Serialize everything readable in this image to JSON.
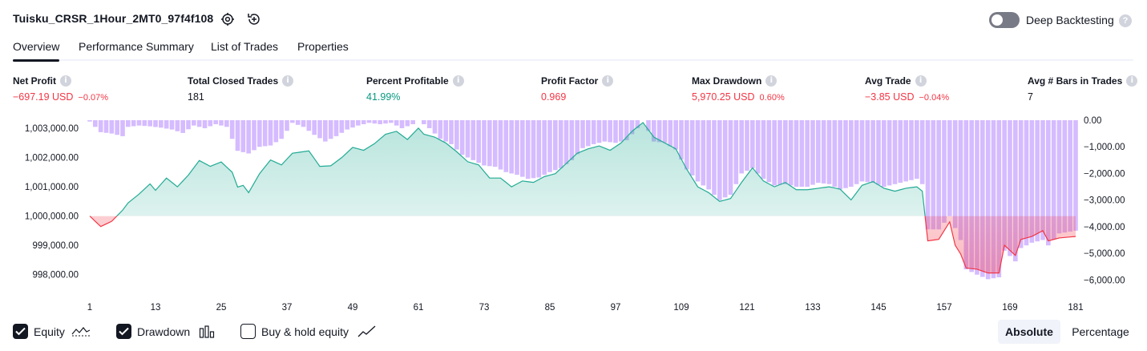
{
  "header": {
    "strategy_name": "Tuisku_CRSR_1Hour_2MT0_97f4f108",
    "deep_backtesting_label": "Deep Backtesting",
    "help_glyph": "?"
  },
  "tabs": [
    {
      "label": "Overview",
      "active": true
    },
    {
      "label": "Performance Summary",
      "active": false
    },
    {
      "label": "List of Trades",
      "active": false
    },
    {
      "label": "Properties",
      "active": false
    }
  ],
  "metrics": [
    {
      "label": "Net Profit",
      "value": "−697.19 USD",
      "sub": "−0.07%",
      "tone": "neg"
    },
    {
      "label": "Total Closed Trades",
      "value": "181",
      "sub": "",
      "tone": "neutral"
    },
    {
      "label": "Percent Profitable",
      "value": "41.99%",
      "sub": "",
      "tone": "pos"
    },
    {
      "label": "Profit Factor",
      "value": "0.969",
      "sub": "",
      "tone": "neg"
    },
    {
      "label": "Max Drawdown",
      "value": "5,970.25 USD",
      "sub": "0.60%",
      "tone": "neg"
    },
    {
      "label": "Avg Trade",
      "value": "−3.85 USD",
      "sub": "−0.04%",
      "tone": "neg"
    },
    {
      "label": "Avg # Bars in Trades",
      "value": "7",
      "sub": "",
      "tone": "neutral"
    }
  ],
  "info_glyph": "i",
  "chart_data": {
    "type": "area",
    "baseline": 1000000,
    "y_left": {
      "min": 997300,
      "max": 1003280,
      "ticks": [
        998000,
        999000,
        1000000,
        1001000,
        1002000,
        1003000
      ],
      "tick_labels": [
        "998,000.00",
        "999,000.00",
        "1,000,000.00",
        "1,001,000.00",
        "1,002,000.00",
        "1,003,000.00"
      ]
    },
    "y_right": {
      "min": -6560,
      "max": 0,
      "ticks": [
        0,
        -1000,
        -2000,
        -3000,
        -4000,
        -5000,
        -6000
      ],
      "tick_labels": [
        "0.00",
        "−1,000.00",
        "−2,000.00",
        "−3,000.00",
        "−4,000.00",
        "−5,000.00",
        "−6,000.00"
      ]
    },
    "x_ticks": [
      1,
      13,
      25,
      37,
      49,
      61,
      73,
      85,
      97,
      109,
      121,
      133,
      145,
      157,
      169,
      181
    ],
    "trades": 181,
    "equity_anchors": [
      [
        1,
        1000000
      ],
      [
        3,
        999640
      ],
      [
        5,
        999820
      ],
      [
        7,
        1000200
      ],
      [
        8,
        1000450
      ],
      [
        10,
        1000750
      ],
      [
        12,
        1001100
      ],
      [
        13,
        1000880
      ],
      [
        15,
        1001300
      ],
      [
        17,
        1001000
      ],
      [
        19,
        1001400
      ],
      [
        21,
        1001900
      ],
      [
        23,
        1001700
      ],
      [
        25,
        1001850
      ],
      [
        27,
        1001500
      ],
      [
        28,
        1000990
      ],
      [
        29,
        1001050
      ],
      [
        30,
        1000800
      ],
      [
        32,
        1001450
      ],
      [
        34,
        1001920
      ],
      [
        36,
        1001750
      ],
      [
        38,
        1002150
      ],
      [
        41,
        1002230
      ],
      [
        43,
        1001700
      ],
      [
        45,
        1001720
      ],
      [
        47,
        1002000
      ],
      [
        49,
        1002350
      ],
      [
        51,
        1002250
      ],
      [
        53,
        1002480
      ],
      [
        55,
        1002800
      ],
      [
        57,
        1002900
      ],
      [
        59,
        1002620
      ],
      [
        61,
        1003010
      ],
      [
        62,
        1002800
      ],
      [
        64,
        1002700
      ],
      [
        66,
        1002500
      ],
      [
        68,
        1002200
      ],
      [
        70,
        1001860
      ],
      [
        72,
        1001750
      ],
      [
        74,
        1001300
      ],
      [
        76,
        1001300
      ],
      [
        78,
        1001000
      ],
      [
        80,
        1001200
      ],
      [
        82,
        1001150
      ],
      [
        84,
        1001350
      ],
      [
        86,
        1001450
      ],
      [
        88,
        1001800
      ],
      [
        90,
        1002150
      ],
      [
        92,
        1002300
      ],
      [
        94,
        1002400
      ],
      [
        96,
        1002250
      ],
      [
        98,
        1002500
      ],
      [
        100,
        1002900
      ],
      [
        102,
        1003200
      ],
      [
        104,
        1002700
      ],
      [
        106,
        1002500
      ],
      [
        108,
        1002300
      ],
      [
        110,
        1001600
      ],
      [
        112,
        1001000
      ],
      [
        114,
        1000800
      ],
      [
        116,
        1000500
      ],
      [
        118,
        1000600
      ],
      [
        120,
        1001150
      ],
      [
        122,
        1001650
      ],
      [
        124,
        1001200
      ],
      [
        126,
        1001000
      ],
      [
        128,
        1001150
      ],
      [
        130,
        1000900
      ],
      [
        132,
        1000900
      ],
      [
        134,
        1000950
      ],
      [
        136,
        1001000
      ],
      [
        138,
        1000920
      ],
      [
        140,
        1000550
      ],
      [
        142,
        1001050
      ],
      [
        144,
        1001180
      ],
      [
        146,
        1000950
      ],
      [
        148,
        1000850
      ],
      [
        150,
        1000950
      ],
      [
        152,
        1001000
      ],
      [
        153,
        1000850
      ],
      [
        154,
        999150
      ],
      [
        156,
        999200
      ],
      [
        158,
        999800
      ],
      [
        159,
        999000
      ],
      [
        160,
        998700
      ],
      [
        161,
        998220
      ],
      [
        163,
        998180
      ],
      [
        165,
        998050
      ],
      [
        167,
        998050
      ],
      [
        168,
        999000
      ],
      [
        170,
        998650
      ],
      [
        171,
        999200
      ],
      [
        173,
        999300
      ],
      [
        175,
        999500
      ],
      [
        176,
        999150
      ],
      [
        178,
        999250
      ],
      [
        181,
        999300
      ]
    ],
    "drawdown_anchors": [
      [
        1,
        -50
      ],
      [
        3,
        -450
      ],
      [
        5,
        -500
      ],
      [
        7,
        -600
      ],
      [
        8,
        -250
      ],
      [
        10,
        -200
      ],
      [
        12,
        -230
      ],
      [
        14,
        -280
      ],
      [
        16,
        -350
      ],
      [
        18,
        -480
      ],
      [
        20,
        -200
      ],
      [
        22,
        -300
      ],
      [
        24,
        -150
      ],
      [
        26,
        -250
      ],
      [
        28,
        -1150
      ],
      [
        30,
        -1250
      ],
      [
        32,
        -1000
      ],
      [
        34,
        -950
      ],
      [
        36,
        -700
      ],
      [
        38,
        -100
      ],
      [
        40,
        -250
      ],
      [
        42,
        -550
      ],
      [
        44,
        -800
      ],
      [
        46,
        -600
      ],
      [
        48,
        -350
      ],
      [
        50,
        -200
      ],
      [
        52,
        -100
      ],
      [
        54,
        -150
      ],
      [
        56,
        -100
      ],
      [
        58,
        -300
      ],
      [
        60,
        -150
      ],
      [
        61,
        0
      ],
      [
        63,
        -300
      ],
      [
        65,
        -700
      ],
      [
        67,
        -900
      ],
      [
        69,
        -1300
      ],
      [
        71,
        -1500
      ],
      [
        73,
        -1700
      ],
      [
        75,
        -1750
      ],
      [
        77,
        -1950
      ],
      [
        79,
        -2050
      ],
      [
        81,
        -2200
      ],
      [
        83,
        -2150
      ],
      [
        85,
        -1950
      ],
      [
        87,
        -1800
      ],
      [
        89,
        -1500
      ],
      [
        91,
        -1050
      ],
      [
        93,
        -900
      ],
      [
        95,
        -800
      ],
      [
        97,
        -850
      ],
      [
        99,
        -750
      ],
      [
        101,
        -300
      ],
      [
        102,
        0
      ],
      [
        104,
        -800
      ],
      [
        106,
        -850
      ],
      [
        108,
        -1100
      ],
      [
        110,
        -1850
      ],
      [
        112,
        -2300
      ],
      [
        114,
        -2600
      ],
      [
        116,
        -3000
      ],
      [
        118,
        -2800
      ],
      [
        120,
        -2000
      ],
      [
        122,
        -1800
      ],
      [
        124,
        -2200
      ],
      [
        126,
        -2450
      ],
      [
        128,
        -2400
      ],
      [
        130,
        -2500
      ],
      [
        132,
        -2500
      ],
      [
        134,
        -2350
      ],
      [
        136,
        -2400
      ],
      [
        138,
        -2600
      ],
      [
        140,
        -2500
      ],
      [
        142,
        -2300
      ],
      [
        144,
        -2350
      ],
      [
        146,
        -2500
      ],
      [
        148,
        -2400
      ],
      [
        150,
        -2300
      ],
      [
        152,
        -2200
      ],
      [
        153,
        -2400
      ],
      [
        154,
        -4100
      ],
      [
        156,
        -4100
      ],
      [
        158,
        -3600
      ],
      [
        160,
        -4500
      ],
      [
        161,
        -5600
      ],
      [
        163,
        -5800
      ],
      [
        165,
        -5970
      ],
      [
        167,
        -5900
      ],
      [
        168,
        -4900
      ],
      [
        170,
        -5300
      ],
      [
        171,
        -4800
      ],
      [
        173,
        -4600
      ],
      [
        175,
        -4500
      ],
      [
        176,
        -4700
      ],
      [
        178,
        -4250
      ],
      [
        181,
        -4150
      ]
    ],
    "series_colors": {
      "equity_up": "#22ab94",
      "equity_down": "#f23645",
      "drawdown": "#c9a8ff"
    }
  },
  "legend": {
    "equity_label": "Equity",
    "drawdown_label": "Drawdown",
    "buyhold_label": "Buy & hold equity",
    "equity_checked": true,
    "drawdown_checked": true,
    "buyhold_checked": false
  },
  "segmented": {
    "absolute_label": "Absolute",
    "percentage_label": "Percentage",
    "selected": "absolute"
  }
}
